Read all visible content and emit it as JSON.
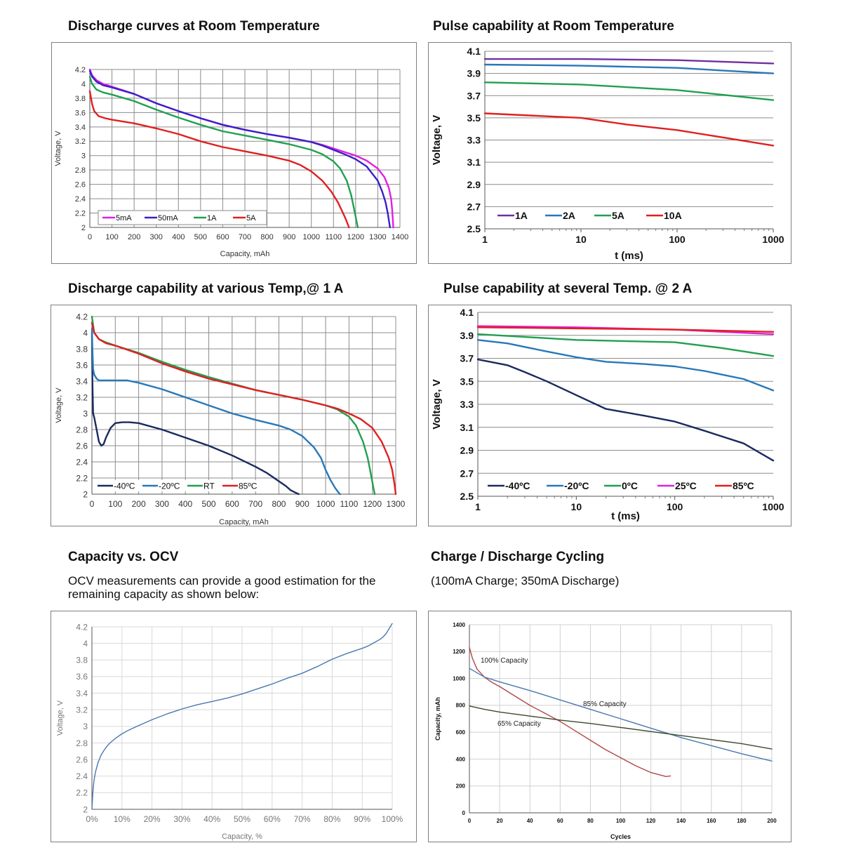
{
  "panels": {
    "p1": {
      "title": "Discharge curves at Room Temperature"
    },
    "p2": {
      "title": "Pulse capability at Room Temperature"
    },
    "p3": {
      "title": "Discharge capability at various Temp,@ 1 A"
    },
    "p4": {
      "title": "Pulse capability at several Temp. @ 2 A"
    },
    "p5": {
      "title": "Capacity vs. OCV",
      "text": "OCV measurements can provide a good estimation for the remaining capacity as shown below:"
    },
    "p6": {
      "title": "Charge / Discharge Cycling",
      "text": "(100mA Charge; 350mA Discharge)"
    }
  },
  "chart_data": [
    {
      "type": "line",
      "xlabel": "Capacity, mAh",
      "ylabel": "Voltage, V",
      "xlim": [
        0,
        1400
      ],
      "ylim": [
        2,
        4.2
      ],
      "xticks": [
        0,
        100,
        200,
        300,
        400,
        500,
        600,
        700,
        800,
        900,
        1000,
        1100,
        1200,
        1300,
        1400
      ],
      "yticks": [
        2,
        2.2,
        2.4,
        2.6,
        2.8,
        3,
        3.2,
        3.4,
        3.6,
        3.8,
        4,
        4.2
      ],
      "ytick_labels": [
        "2",
        "2.2",
        "2.4",
        "2.6",
        "2.8",
        "3",
        "3.2",
        "3.4",
        "3.6",
        "3.8",
        "4",
        "4.2"
      ],
      "grid": true,
      "legend": "bottom-left",
      "series": [
        {
          "name": "5mA",
          "color": "#e020e0",
          "x": [
            0,
            10,
            30,
            60,
            100,
            200,
            300,
            400,
            500,
            600,
            700,
            800,
            900,
            1000,
            1050,
            1100,
            1150,
            1200,
            1250,
            1300,
            1330,
            1350,
            1360,
            1365,
            1368,
            1370
          ],
          "y": [
            4.2,
            4.12,
            4.05,
            4.0,
            3.96,
            3.86,
            3.73,
            3.62,
            3.52,
            3.43,
            3.36,
            3.3,
            3.25,
            3.19,
            3.15,
            3.1,
            3.05,
            3.0,
            2.93,
            2.82,
            2.7,
            2.55,
            2.4,
            2.25,
            2.1,
            2.0
          ]
        },
        {
          "name": "50mA",
          "color": "#3a20c8",
          "x": [
            0,
            10,
            30,
            60,
            100,
            200,
            300,
            400,
            500,
            600,
            700,
            800,
            900,
            1000,
            1050,
            1100,
            1150,
            1200,
            1250,
            1300,
            1320,
            1335,
            1345,
            1350,
            1355
          ],
          "y": [
            4.18,
            4.1,
            4.03,
            3.98,
            3.95,
            3.86,
            3.73,
            3.62,
            3.52,
            3.43,
            3.36,
            3.3,
            3.25,
            3.19,
            3.14,
            3.08,
            3.02,
            2.95,
            2.85,
            2.65,
            2.5,
            2.35,
            2.2,
            2.1,
            2.0
          ]
        },
        {
          "name": "1A",
          "color": "#20a050",
          "x": [
            0,
            10,
            30,
            60,
            100,
            200,
            300,
            400,
            500,
            600,
            700,
            800,
            900,
            1000,
            1050,
            1100,
            1130,
            1160,
            1180,
            1190,
            1200,
            1205,
            1210
          ],
          "y": [
            4.1,
            4.0,
            3.92,
            3.88,
            3.85,
            3.76,
            3.64,
            3.53,
            3.43,
            3.34,
            3.28,
            3.22,
            3.16,
            3.08,
            3.02,
            2.92,
            2.82,
            2.65,
            2.45,
            2.3,
            2.15,
            2.07,
            2.0
          ]
        },
        {
          "name": "5A",
          "color": "#e02020",
          "x": [
            0,
            10,
            20,
            40,
            70,
            100,
            200,
            300,
            400,
            500,
            600,
            700,
            800,
            900,
            950,
            1000,
            1050,
            1090,
            1120,
            1140,
            1155,
            1165,
            1170
          ],
          "y": [
            3.9,
            3.72,
            3.62,
            3.55,
            3.52,
            3.5,
            3.45,
            3.38,
            3.3,
            3.2,
            3.12,
            3.06,
            3.0,
            2.93,
            2.87,
            2.78,
            2.65,
            2.5,
            2.35,
            2.22,
            2.12,
            2.04,
            2.0
          ]
        }
      ]
    },
    {
      "type": "line",
      "xscale": "log",
      "xlabel": "t (ms)",
      "ylabel": "Voltage, V",
      "xlim": [
        1,
        1000
      ],
      "ylim": [
        2.5,
        4.1
      ],
      "xticks": [
        1,
        10,
        100,
        1000
      ],
      "yticks": [
        2.5,
        2.7,
        2.9,
        3.1,
        3.3,
        3.5,
        3.7,
        3.9,
        4.1
      ],
      "ytick_labels": [
        "2.5",
        "2.7",
        "2.9",
        "3.1",
        "3.3",
        "3.5",
        "3.7",
        "3.9",
        "4.1"
      ],
      "grid": true,
      "legend": "bottom-left",
      "series": [
        {
          "name": "1A",
          "color": "#7030a0",
          "x": [
            1,
            10,
            100,
            1000
          ],
          "y": [
            4.03,
            4.03,
            4.02,
            3.99
          ]
        },
        {
          "name": "2A",
          "color": "#2878b8",
          "x": [
            1,
            10,
            100,
            1000
          ],
          "y": [
            3.98,
            3.97,
            3.95,
            3.9
          ]
        },
        {
          "name": "5A",
          "color": "#20a050",
          "x": [
            1,
            10,
            100,
            1000
          ],
          "y": [
            3.82,
            3.8,
            3.75,
            3.66
          ]
        },
        {
          "name": "10A",
          "color": "#e02020",
          "x": [
            1,
            10,
            30,
            100,
            1000
          ],
          "y": [
            3.54,
            3.5,
            3.44,
            3.39,
            3.25
          ]
        }
      ]
    },
    {
      "type": "line",
      "xlabel": "Capacity, mAh",
      "ylabel": "Voltage, V",
      "xlim": [
        0,
        1300
      ],
      "ylim": [
        2,
        4.2
      ],
      "xticks": [
        0,
        100,
        200,
        300,
        400,
        500,
        600,
        700,
        800,
        900,
        1000,
        1100,
        1200,
        1300
      ],
      "yticks": [
        2,
        2.2,
        2.4,
        2.6,
        2.8,
        3,
        3.2,
        3.4,
        3.6,
        3.8,
        4,
        4.2
      ],
      "ytick_labels": [
        "2",
        "2.2",
        "2.4",
        "2.6",
        "2.8",
        "3",
        "3.2",
        "3.4",
        "3.6",
        "3.8",
        "4",
        "4.2"
      ],
      "grid": true,
      "legend": "bottom-left",
      "series": [
        {
          "name": "-40ºC",
          "color": "#1a2a5e",
          "x": [
            0,
            2,
            5,
            10,
            20,
            30,
            40,
            50,
            60,
            80,
            100,
            130,
            160,
            200,
            300,
            400,
            500,
            600,
            700,
            750,
            800,
            830,
            850,
            870,
            885
          ],
          "y": [
            4.0,
            3.4,
            3.0,
            2.95,
            2.8,
            2.65,
            2.6,
            2.62,
            2.7,
            2.82,
            2.88,
            2.89,
            2.89,
            2.88,
            2.8,
            2.7,
            2.6,
            2.48,
            2.34,
            2.26,
            2.16,
            2.1,
            2.05,
            2.02,
            2.0
          ]
        },
        {
          "name": "-20ºC",
          "color": "#2878b8",
          "x": [
            0,
            2,
            5,
            10,
            20,
            30,
            50,
            100,
            150,
            200,
            300,
            400,
            500,
            600,
            700,
            800,
            850,
            900,
            950,
            980,
            1000,
            1020,
            1040,
            1055,
            1062
          ],
          "y": [
            4.05,
            3.8,
            3.55,
            3.48,
            3.43,
            3.41,
            3.41,
            3.41,
            3.41,
            3.38,
            3.3,
            3.2,
            3.1,
            3.0,
            2.92,
            2.85,
            2.8,
            2.72,
            2.58,
            2.45,
            2.3,
            2.18,
            2.08,
            2.02,
            2.0
          ]
        },
        {
          "name": "RT",
          "color": "#20a050",
          "x": [
            0,
            10,
            30,
            60,
            100,
            200,
            300,
            400,
            500,
            600,
            700,
            800,
            900,
            1000,
            1050,
            1100,
            1130,
            1160,
            1180,
            1190,
            1200,
            1205,
            1210
          ],
          "y": [
            4.2,
            4.0,
            3.92,
            3.88,
            3.84,
            3.75,
            3.64,
            3.54,
            3.45,
            3.37,
            3.29,
            3.23,
            3.17,
            3.1,
            3.05,
            2.96,
            2.85,
            2.65,
            2.45,
            2.3,
            2.15,
            2.07,
            2.0
          ]
        },
        {
          "name": "85ºC",
          "color": "#e02020",
          "x": [
            0,
            10,
            30,
            60,
            100,
            200,
            300,
            400,
            500,
            600,
            700,
            800,
            900,
            1000,
            1050,
            1100,
            1150,
            1200,
            1240,
            1270,
            1285,
            1295,
            1300
          ],
          "y": [
            4.12,
            4.0,
            3.92,
            3.87,
            3.84,
            3.74,
            3.62,
            3.52,
            3.43,
            3.36,
            3.29,
            3.23,
            3.17,
            3.1,
            3.06,
            3.0,
            2.93,
            2.82,
            2.65,
            2.45,
            2.3,
            2.12,
            2.0
          ]
        }
      ]
    },
    {
      "type": "line",
      "xscale": "log",
      "xlabel": "t (ms)",
      "ylabel": "Voltage, V",
      "xlim": [
        1,
        1000
      ],
      "ylim": [
        2.5,
        4.1
      ],
      "xticks": [
        1,
        10,
        100,
        1000
      ],
      "yticks": [
        2.5,
        2.7,
        2.9,
        3.1,
        3.3,
        3.5,
        3.7,
        3.9,
        4.1
      ],
      "ytick_labels": [
        "2.5",
        "2.7",
        "2.9",
        "3.1",
        "3.3",
        "3.5",
        "3.7",
        "3.9",
        "4.1"
      ],
      "grid": true,
      "legend": "bottom-left",
      "series": [
        {
          "name": "-40ºC",
          "color": "#1a2a5e",
          "x": [
            1,
            2,
            3,
            5,
            10,
            20,
            50,
            100,
            200,
            500,
            1000
          ],
          "y": [
            3.69,
            3.64,
            3.58,
            3.5,
            3.38,
            3.26,
            3.2,
            3.15,
            3.07,
            2.96,
            2.81
          ]
        },
        {
          "name": "-20ºC",
          "color": "#2878b8",
          "x": [
            1,
            2,
            5,
            10,
            20,
            50,
            100,
            200,
            500,
            1000
          ],
          "y": [
            3.86,
            3.83,
            3.76,
            3.71,
            3.67,
            3.65,
            3.63,
            3.59,
            3.52,
            3.42
          ]
        },
        {
          "name": "0ºC",
          "color": "#20a050",
          "x": [
            1,
            10,
            100,
            300,
            1000
          ],
          "y": [
            3.91,
            3.86,
            3.84,
            3.79,
            3.72
          ]
        },
        {
          "name": "25ºC",
          "color": "#e020e0",
          "x": [
            1,
            10,
            100,
            1000
          ],
          "y": [
            3.98,
            3.97,
            3.95,
            3.91
          ]
        },
        {
          "name": "85ºC",
          "color": "#e02020",
          "x": [
            1,
            10,
            100,
            1000
          ],
          "y": [
            3.97,
            3.96,
            3.95,
            3.93
          ]
        }
      ]
    },
    {
      "type": "line",
      "xlabel": "Capacity, %",
      "ylabel": "Voltage, V",
      "xlim": [
        0,
        100
      ],
      "ylim": [
        2,
        4.2
      ],
      "xticks": [
        0,
        10,
        20,
        30,
        40,
        50,
        60,
        70,
        80,
        90,
        100
      ],
      "xtick_labels": [
        "0%",
        "10%",
        "20%",
        "30%",
        "40%",
        "50%",
        "60%",
        "70%",
        "80%",
        "90%",
        "100%"
      ],
      "yticks": [
        2,
        2.2,
        2.4,
        2.6,
        2.8,
        3,
        3.2,
        3.4,
        3.6,
        3.8,
        4,
        4.2
      ],
      "ytick_labels": [
        "2",
        "2.2",
        "2.4",
        "2.6",
        "2.8",
        "3",
        "3.2",
        "3.4",
        "3.6",
        "3.8",
        "4",
        "4.2"
      ],
      "grid": true,
      "legend": "none",
      "series": [
        {
          "color": "#4a78b0",
          "x": [
            0,
            0.3,
            0.7,
            1.2,
            2,
            3,
            4,
            5,
            6,
            8,
            10,
            12,
            15,
            20,
            25,
            30,
            35,
            40,
            45,
            50,
            55,
            60,
            65,
            70,
            75,
            80,
            85,
            90,
            92,
            94,
            96,
            97,
            98,
            99,
            100
          ],
          "y": [
            2.0,
            2.2,
            2.35,
            2.45,
            2.56,
            2.65,
            2.71,
            2.76,
            2.8,
            2.86,
            2.91,
            2.95,
            3.0,
            3.08,
            3.15,
            3.21,
            3.26,
            3.3,
            3.34,
            3.39,
            3.45,
            3.51,
            3.58,
            3.64,
            3.72,
            3.81,
            3.88,
            3.94,
            3.97,
            4.01,
            4.05,
            4.08,
            4.12,
            4.18,
            4.24
          ]
        }
      ]
    },
    {
      "type": "line",
      "xlabel": "Cycles",
      "ylabel": "Capacity, mAh",
      "xlim": [
        0,
        200
      ],
      "ylim": [
        0,
        1400
      ],
      "xticks": [
        0,
        20,
        40,
        60,
        80,
        100,
        120,
        140,
        160,
        180,
        200
      ],
      "yticks": [
        0,
        200,
        400,
        600,
        800,
        1000,
        1200,
        1400
      ],
      "ytick_labels": [
        "0",
        "200",
        "400",
        "600",
        "800",
        "1000",
        "1200",
        "1400"
      ],
      "grid": true,
      "legend": "none",
      "annotations": [
        "100% Capacity",
        "85%  Capacity",
        "65% Capacity"
      ],
      "series": [
        {
          "color": "#b04848",
          "x": [
            0,
            2,
            5,
            10,
            15,
            20,
            30,
            40,
            50,
            60,
            70,
            80,
            90,
            100,
            110,
            120,
            130,
            133
          ],
          "y": [
            1230,
            1150,
            1070,
            1010,
            970,
            940,
            870,
            800,
            740,
            680,
            610,
            540,
            470,
            410,
            350,
            300,
            270,
            275
          ]
        },
        {
          "color": "#4a78b0",
          "x": [
            0,
            10,
            20,
            40,
            60,
            80,
            100,
            120,
            140,
            160,
            180,
            200
          ],
          "y": [
            1075,
            1010,
            975,
            910,
            840,
            770,
            700,
            630,
            560,
            500,
            440,
            385
          ]
        },
        {
          "color": "#3d4a2a",
          "x": [
            0,
            10,
            20,
            40,
            60,
            80,
            100,
            120,
            140,
            160,
            180,
            200
          ],
          "y": [
            795,
            770,
            750,
            720,
            690,
            665,
            635,
            605,
            575,
            545,
            515,
            475
          ]
        }
      ]
    }
  ]
}
